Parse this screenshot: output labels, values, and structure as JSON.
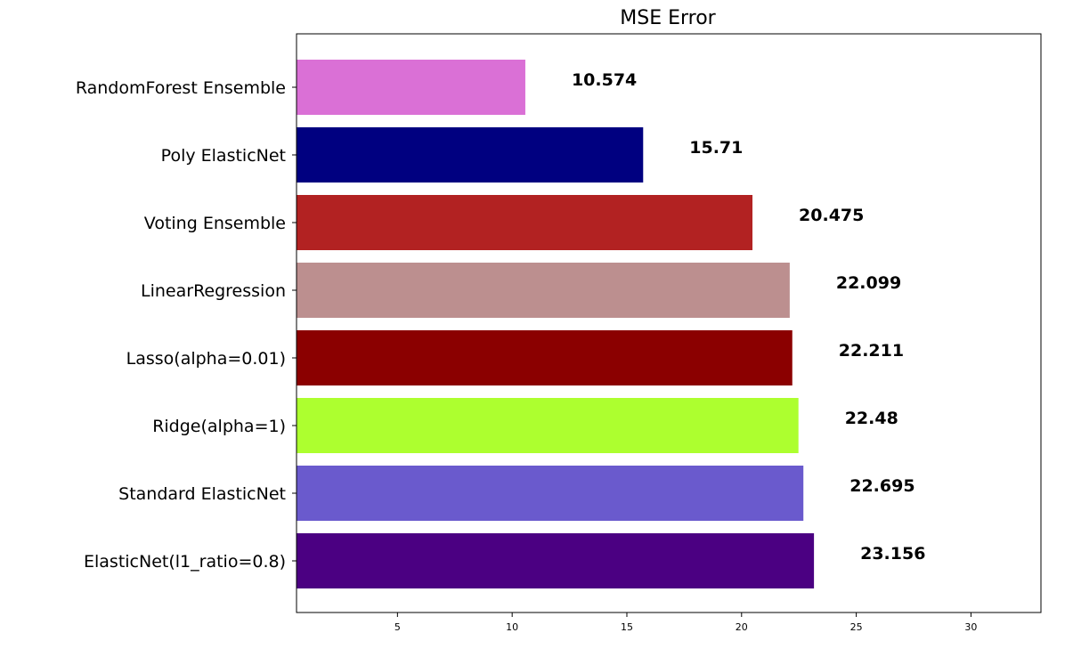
{
  "chart_data": {
    "type": "bar",
    "orientation": "horizontal",
    "title": "MSE Error",
    "xlabel": "",
    "ylabel": "",
    "xlim": [
      0.6,
      33.05
    ],
    "xticks": [
      5,
      10,
      15,
      20,
      25,
      30
    ],
    "grid": false,
    "categories": [
      "RandomForest Ensemble",
      "Poly ElasticNet",
      "Voting Ensemble",
      "LinearRegression",
      "Lasso(alpha=0.01)",
      "Ridge(alpha=1)",
      "Standard ElasticNet",
      "ElasticNet(l1_ratio=0.8)"
    ],
    "values": [
      10.574,
      15.71,
      20.475,
      22.099,
      22.211,
      22.48,
      22.695,
      23.156
    ],
    "value_labels": [
      "10.574",
      "15.71",
      "20.475",
      "22.099",
      "22.211",
      "22.48",
      "22.695",
      "23.156"
    ],
    "colors": [
      "#da70d6",
      "#000080",
      "#b22222",
      "#bc8f8f",
      "#8b0000",
      "#adff2f",
      "#6a5acd",
      "#4b0082"
    ]
  }
}
